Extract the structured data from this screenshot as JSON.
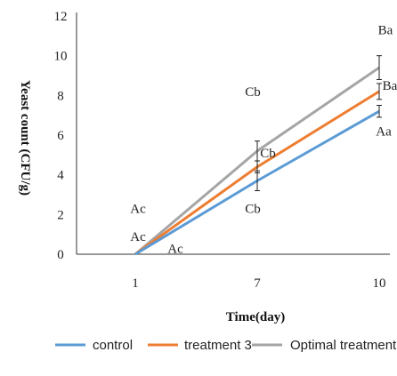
{
  "chart_data": {
    "type": "line",
    "xlabel": "Time(day)",
    "ylabel": "Yeast count (CFU/g)",
    "x": [
      1,
      7,
      10
    ],
    "x_tick_labels": [
      "1",
      "7",
      "10"
    ],
    "ylim": [
      0,
      12
    ],
    "y_ticks": [
      0,
      2,
      4,
      6,
      8,
      10,
      12
    ],
    "grid": false,
    "legend_position": "bottom",
    "series": [
      {
        "name": "control",
        "color": "#5b9bd5",
        "values": [
          0.0,
          3.7,
          7.2
        ],
        "errors": [
          0,
          0.5,
          0.3
        ]
      },
      {
        "name": "treatment 3",
        "color": "#ed7d31",
        "values": [
          0.0,
          4.4,
          8.2
        ],
        "errors": [
          0,
          0.3,
          0.4
        ]
      },
      {
        "name": "Optimal treatment",
        "color": "#a5a5a5",
        "values": [
          0.0,
          5.2,
          9.4
        ],
        "errors": [
          0,
          0.5,
          0.6
        ]
      }
    ],
    "annotations": [
      {
        "text": "Ac",
        "x": 1,
        "y": 2.3
      },
      {
        "text": "Ac",
        "x": 1,
        "y": 0.9
      },
      {
        "text": "Ac",
        "x": 1,
        "y": 0.3
      },
      {
        "text": "Cb",
        "x": 7,
        "y": 8.2
      },
      {
        "text": "Cb",
        "x": 7,
        "y": 5.1
      },
      {
        "text": "Cb",
        "x": 7,
        "y": 2.3
      },
      {
        "text": "Ba",
        "x": 10,
        "y": 11.3
      },
      {
        "text": "Ba",
        "x": 10,
        "y": 8.5
      },
      {
        "text": "Aa",
        "x": 10,
        "y": 6.2
      }
    ]
  }
}
